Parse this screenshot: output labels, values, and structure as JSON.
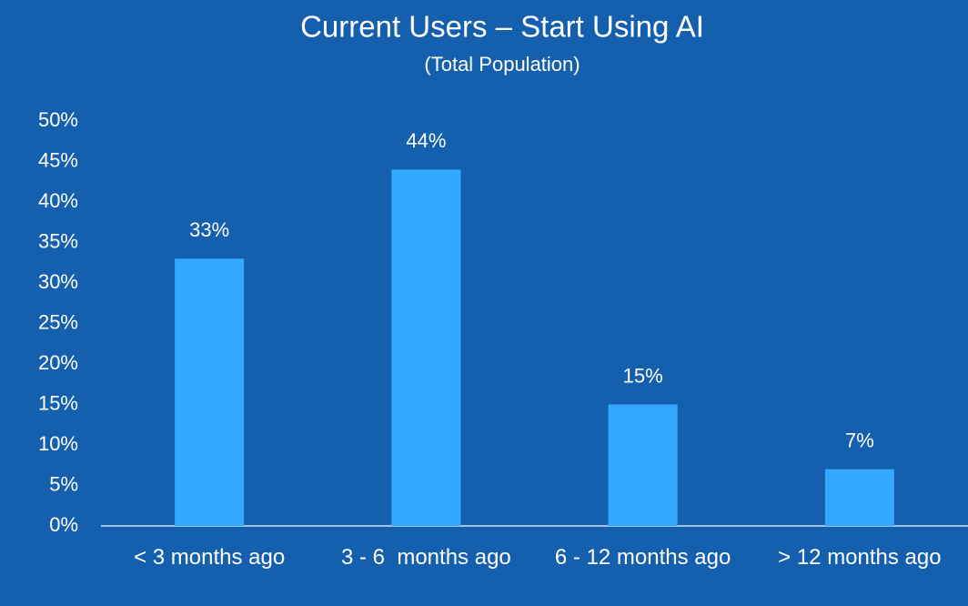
{
  "chart_data": {
    "type": "bar",
    "title": "Current Users – Start Using AI",
    "subtitle": "(Total Population)",
    "categories": [
      "< 3 months ago",
      "3 - 6  months ago",
      "6 - 12 months ago",
      "> 12 months ago"
    ],
    "values": [
      33,
      44,
      15,
      7
    ],
    "value_labels": [
      "33%",
      "44%",
      "15%",
      "7%"
    ],
    "color": "#33aaff",
    "ylim": [
      0,
      50
    ],
    "yticks": [
      {
        "value": 0,
        "label": "0%"
      },
      {
        "value": 5,
        "label": "5%"
      },
      {
        "value": 10,
        "label": "10%"
      },
      {
        "value": 15,
        "label": "15%"
      },
      {
        "value": 20,
        "label": "20%"
      },
      {
        "value": 25,
        "label": "25%"
      },
      {
        "value": 30,
        "label": "30%"
      },
      {
        "value": 35,
        "label": "35%"
      },
      {
        "value": 40,
        "label": "40%"
      },
      {
        "value": 45,
        "label": "45%"
      },
      {
        "value": 50,
        "label": "50%"
      }
    ],
    "grid": false
  }
}
